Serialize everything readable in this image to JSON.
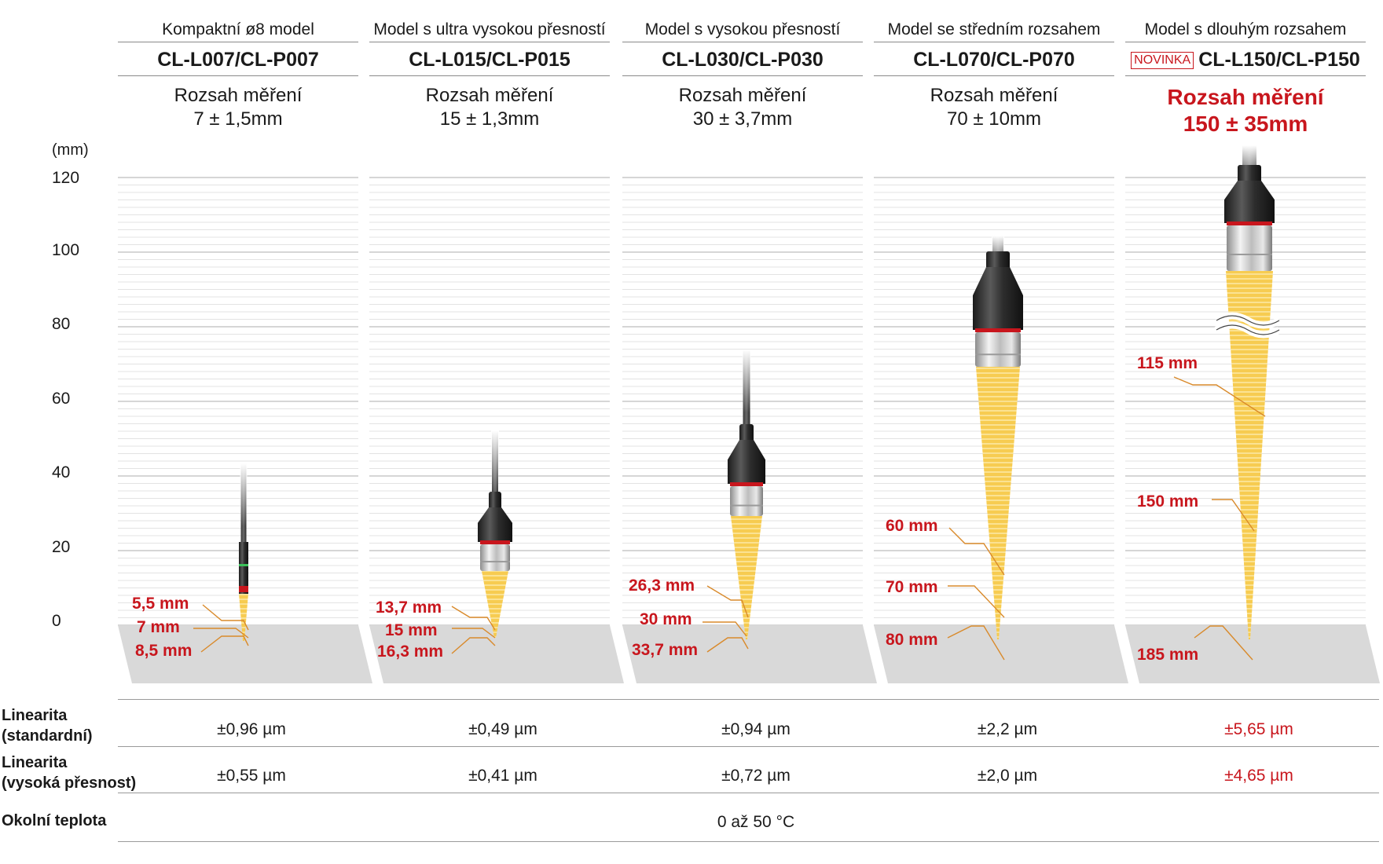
{
  "unit": "(mm)",
  "y_ticks": [
    "120",
    "100",
    "80",
    "60",
    "40",
    "20",
    "0"
  ],
  "columns": [
    {
      "subtitle": "Kompaktní ø8 model",
      "model": "CL-L007/CL-P007",
      "range_label": "Rozsah měření",
      "range_value": "7 ± 1,5mm",
      "annotations": [
        "5,5 mm",
        "7 mm",
        "8,5 mm"
      ],
      "linearity_standard": "±0,96 µm",
      "linearity_high": "±0,55 µm"
    },
    {
      "subtitle": "Model s ultra vysokou přesností",
      "model": "CL-L015/CL-P015",
      "range_label": "Rozsah měření",
      "range_value": "15 ± 1,3mm",
      "annotations": [
        "13,7 mm",
        "15 mm",
        "16,3 mm"
      ],
      "linearity_standard": "±0,49 µm",
      "linearity_high": "±0,41 µm"
    },
    {
      "subtitle": "Model s vysokou přesností",
      "model": "CL-L030/CL-P030",
      "range_label": "Rozsah měření",
      "range_value": "30 ± 3,7mm",
      "annotations": [
        "26,3 mm",
        "30 mm",
        "33,7 mm"
      ],
      "linearity_standard": "±0,94 µm",
      "linearity_high": "±0,72 µm"
    },
    {
      "subtitle": "Model se středním rozsahem",
      "model": "CL-L070/CL-P070",
      "range_label": "Rozsah měření",
      "range_value": "70 ± 10mm",
      "annotations": [
        "60 mm",
        "70 mm",
        "80 mm"
      ],
      "linearity_standard": "±2,2 µm",
      "linearity_high": "±2,0 µm"
    },
    {
      "subtitle": "Model s dlouhým rozsahem",
      "badge": "NOVINKA",
      "model": "CL-L150/CL-P150",
      "range_label": "Rozsah měření",
      "range_value": "150 ± 35mm",
      "annotations": [
        "115 mm",
        "150 mm",
        "185 mm"
      ],
      "linearity_standard": "±5,65 µm",
      "linearity_high": "±4,65 µm"
    }
  ],
  "specs": {
    "linearity_standard_label": [
      "Linearita",
      "(standardní)"
    ],
    "linearity_high_label": [
      "Linearita",
      "(vysoká přesnost)"
    ],
    "ambient_label": "Okolní teplota",
    "ambient_value": "0 až 50 °C"
  },
  "colors": {
    "accent_red": "#c8161d",
    "beam_yellow": "#f7c948",
    "plane_gray": "#d9d9d9",
    "grid_gray": "#dcdcdc",
    "leader_orange": "#d98a2b"
  }
}
